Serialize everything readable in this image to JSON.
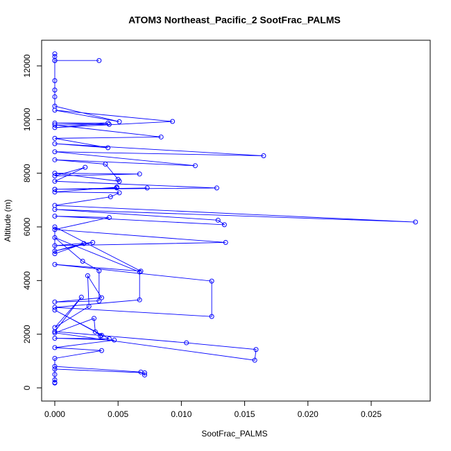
{
  "chart_data": {
    "type": "line",
    "title": "ATOM3 Northeast_Pacific_2 SootFrac_PALMS",
    "x_label": "SootFrac_PALMS",
    "y_label": "Altitude (m)",
    "color": "#0000ff",
    "markers": true,
    "x": [
      0,
      0,
      0,
      0.0035,
      0,
      0,
      0,
      0,
      0,
      0.0051,
      0,
      0.0093,
      0,
      0.0042,
      0,
      0.0043,
      0,
      0.0084,
      0,
      0.0042,
      0,
      0.0165,
      0,
      0.0111,
      0,
      0.004,
      0.005,
      0.0051,
      0,
      0.0067,
      0,
      0.0024,
      0,
      0.0128,
      0,
      0.0073,
      0,
      0.0049,
      0.0049,
      0,
      0.0051,
      0.0044,
      0,
      0.0285,
      0,
      0.0129,
      0.0134,
      0,
      0.0043,
      0,
      0.0135,
      0,
      0.003,
      0,
      0.0023,
      0,
      0,
      0.0068,
      0,
      0.0124,
      0.0124,
      0,
      0.0067,
      0.0067,
      0,
      0.0022,
      0.0035,
      0.0035,
      0,
      0.0037,
      0.0026,
      0.0027,
      0,
      0.0021,
      0,
      0.0104,
      0.0159,
      0.0158,
      0,
      0.0031,
      0.0032,
      0.0036,
      0.0037,
      0,
      0.0043,
      0,
      0.0047,
      0,
      0.0037,
      0,
      0,
      0.0068,
      0.0071,
      0.0071,
      0,
      0,
      0,
      0,
      0
    ],
    "values": [
      12450,
      12350,
      12200,
      12200,
      12200,
      11450,
      11100,
      10850,
      10500,
      9920,
      10350,
      9930,
      9700,
      9870,
      9870,
      9820,
      9800,
      9350,
      9300,
      8950,
      9100,
      8650,
      8800,
      8280,
      8500,
      8340,
      7770,
      7700,
      8000,
      7970,
      7900,
      8220,
      7700,
      7450,
      7400,
      7450,
      7400,
      7450,
      7480,
      7300,
      7270,
      7120,
      6800,
      6180,
      6650,
      6250,
      6080,
      6400,
      6350,
      5900,
      5420,
      5300,
      5420,
      5100,
      5380,
      5000,
      6000,
      4350,
      4600,
      3980,
      2660,
      3000,
      3280,
      4320,
      5600,
      4720,
      4360,
      3240,
      3200,
      3360,
      4180,
      3040,
      2250,
      3380,
      2100,
      1680,
      1430,
      1030,
      2050,
      2590,
      2090,
      1940,
      1960,
      2900,
      1830,
      1850,
      1780,
      1500,
      1390,
      1100,
      800,
      590,
      480,
      560,
      700,
      500,
      300,
      180,
      200
    ],
    "xlim": [
      -0.00104,
      0.02966
    ],
    "ylim": [
      -491,
      12956
    ],
    "xticks": [
      {
        "value": 0,
        "label": "0.000"
      },
      {
        "value": 0.005,
        "label": "0.005"
      },
      {
        "value": 0.01,
        "label": "0.010"
      },
      {
        "value": 0.015,
        "label": "0.015"
      },
      {
        "value": 0.02,
        "label": "0.020"
      },
      {
        "value": 0.025,
        "label": "0.025"
      }
    ],
    "yticks": [
      0,
      2000,
      4000,
      6000,
      8000,
      10000,
      12000
    ]
  }
}
